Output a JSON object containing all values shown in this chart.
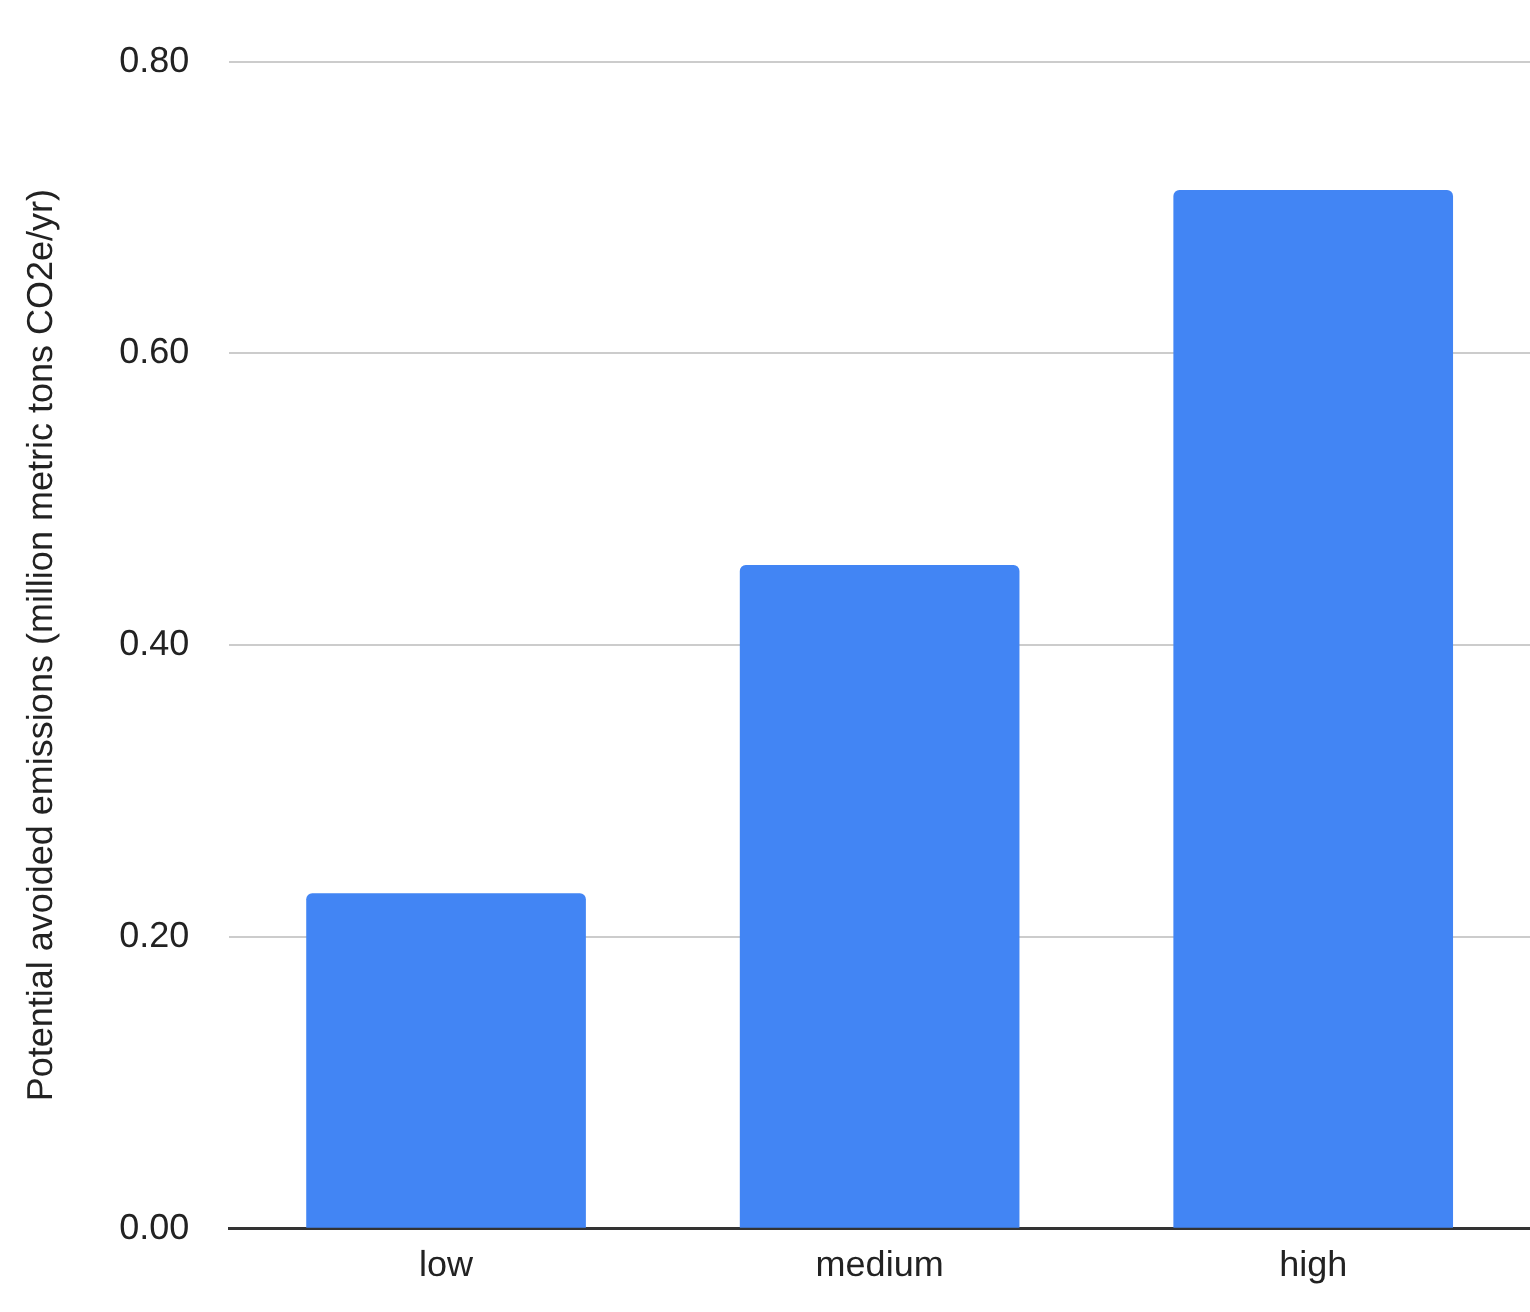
{
  "chart_data": {
    "type": "bar",
    "ylabel": "Potential avoided emissions (million metric tons CO2e/yr)",
    "categories": [
      "low",
      "medium",
      "high"
    ],
    "values": [
      0.23,
      0.455,
      0.712
    ],
    "color": "#4285f4",
    "ylim": [
      0,
      0.8
    ],
    "yticks": [
      {
        "value": 0,
        "label": "0.00"
      },
      {
        "value": 0.2,
        "label": "0.20"
      },
      {
        "value": 0.4,
        "label": "0.40"
      },
      {
        "value": 0.6,
        "label": "0.60"
      },
      {
        "value": 0.8,
        "label": "0.80"
      }
    ],
    "grid": "y",
    "legend": false
  }
}
